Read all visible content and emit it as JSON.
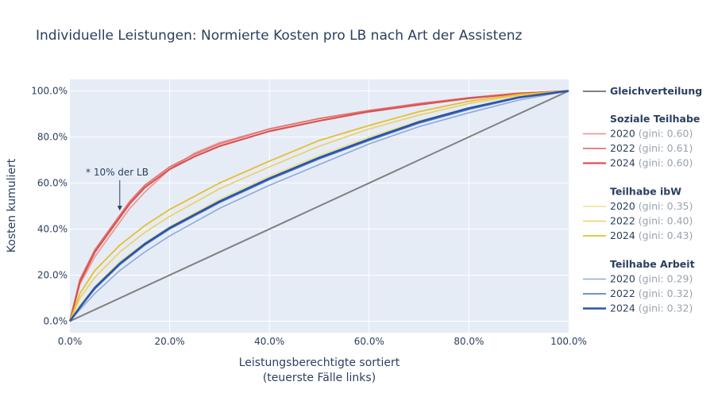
{
  "chart_data": {
    "type": "line",
    "title": "Individuelle Leistungen: Normierte Kosten pro LB nach Art der Assistenz",
    "xlabel": "Leistungsberechtigte sortiert",
    "xlabel_sub": "(teuerste Fälle links)",
    "ylabel": "Kosten kumuliert",
    "xlim": [
      0,
      1
    ],
    "ylim": [
      -0.05,
      1.05
    ],
    "x_ticks": [
      0,
      0.2,
      0.4,
      0.6,
      0.8,
      1.0
    ],
    "x_tick_labels": [
      "0.0%",
      "20.0%",
      "40.0%",
      "60.0%",
      "80.0%",
      "100.0%"
    ],
    "y_ticks": [
      0,
      0.2,
      0.4,
      0.6,
      0.8,
      1.0
    ],
    "y_tick_labels": [
      "0.0%",
      "20.0%",
      "40.0%",
      "60.0%",
      "80.0%",
      "100.0%"
    ],
    "grid": true,
    "legend_position": "right",
    "annotation": {
      "text": "* 10% der LB",
      "x": 0.1,
      "y": 0.48
    },
    "reference": {
      "name": "Gleichverteilung",
      "color": "#808080",
      "x": [
        0,
        1
      ],
      "y": [
        0,
        1
      ]
    },
    "groups": [
      {
        "name": "Soziale Teilhabe",
        "series": [
          {
            "name": "2020",
            "gini_label": "(gini: 0.60)",
            "color": "#ee9a9a",
            "width": 1.8,
            "x": [
              0,
              0.02,
              0.05,
              0.08,
              0.1,
              0.12,
              0.15,
              0.2,
              0.25,
              0.3,
              0.4,
              0.5,
              0.6,
              0.7,
              0.8,
              0.9,
              1.0
            ],
            "y": [
              0,
              0.16,
              0.28,
              0.37,
              0.43,
              0.49,
              0.56,
              0.66,
              0.73,
              0.775,
              0.835,
              0.88,
              0.915,
              0.945,
              0.97,
              0.99,
              1.0
            ]
          },
          {
            "name": "2022",
            "gini_label": "(gini: 0.61)",
            "color": "#e57373",
            "width": 1.8,
            "x": [
              0,
              0.02,
              0.05,
              0.08,
              0.1,
              0.12,
              0.15,
              0.2,
              0.25,
              0.3,
              0.4,
              0.5,
              0.6,
              0.7,
              0.8,
              0.9,
              1.0
            ],
            "y": [
              0,
              0.18,
              0.31,
              0.4,
              0.46,
              0.52,
              0.59,
              0.67,
              0.725,
              0.77,
              0.835,
              0.88,
              0.915,
              0.945,
              0.97,
              0.99,
              1.0
            ]
          },
          {
            "name": "2024",
            "gini_label": "(gini: 0.60)",
            "color": "#d9534f",
            "width": 2.2,
            "x": [
              0,
              0.02,
              0.05,
              0.08,
              0.1,
              0.12,
              0.15,
              0.2,
              0.25,
              0.3,
              0.4,
              0.5,
              0.6,
              0.7,
              0.8,
              0.9,
              1.0
            ],
            "y": [
              0,
              0.17,
              0.3,
              0.39,
              0.45,
              0.51,
              0.58,
              0.66,
              0.715,
              0.76,
              0.825,
              0.87,
              0.91,
              0.94,
              0.968,
              0.988,
              1.0
            ]
          }
        ]
      },
      {
        "name": "Teilhabe ibW",
        "series": [
          {
            "name": "2020",
            "gini_label": "(gini: 0.35)",
            "color": "#efe08e",
            "width": 1.6,
            "x": [
              0,
              0.02,
              0.05,
              0.1,
              0.15,
              0.2,
              0.3,
              0.4,
              0.5,
              0.6,
              0.7,
              0.8,
              0.9,
              1.0
            ],
            "y": [
              0,
              0.07,
              0.15,
              0.26,
              0.34,
              0.41,
              0.53,
              0.63,
              0.72,
              0.8,
              0.87,
              0.925,
              0.97,
              1.0
            ]
          },
          {
            "name": "2022",
            "gini_label": "(gini: 0.40)",
            "color": "#ecd062",
            "width": 1.6,
            "x": [
              0,
              0.02,
              0.05,
              0.1,
              0.15,
              0.2,
              0.3,
              0.4,
              0.5,
              0.6,
              0.7,
              0.8,
              0.9,
              1.0
            ],
            "y": [
              0,
              0.1,
              0.19,
              0.3,
              0.385,
              0.455,
              0.575,
              0.67,
              0.76,
              0.835,
              0.895,
              0.945,
              0.98,
              1.0
            ]
          },
          {
            "name": "2024",
            "gini_label": "(gini: 0.43)",
            "color": "#e6be2e",
            "width": 1.8,
            "x": [
              0,
              0.02,
              0.05,
              0.1,
              0.15,
              0.2,
              0.3,
              0.4,
              0.5,
              0.6,
              0.7,
              0.8,
              0.9,
              1.0
            ],
            "y": [
              0,
              0.12,
              0.22,
              0.33,
              0.415,
              0.485,
              0.6,
              0.695,
              0.785,
              0.85,
              0.91,
              0.955,
              0.985,
              1.0
            ]
          }
        ]
      },
      {
        "name": "Teilhabe Arbeit",
        "series": [
          {
            "name": "2020",
            "gini_label": "(gini: 0.29)",
            "color": "#8fa9dc",
            "width": 1.6,
            "x": [
              0,
              0.02,
              0.05,
              0.1,
              0.15,
              0.2,
              0.3,
              0.4,
              0.5,
              0.6,
              0.7,
              0.8,
              0.9,
              1.0
            ],
            "y": [
              0,
              0.05,
              0.12,
              0.22,
              0.3,
              0.37,
              0.49,
              0.59,
              0.68,
              0.77,
              0.845,
              0.905,
              0.96,
              1.0
            ]
          },
          {
            "name": "2022",
            "gini_label": "(gini: 0.32)",
            "color": "#5b82cf",
            "width": 1.8,
            "x": [
              0,
              0.02,
              0.05,
              0.1,
              0.15,
              0.2,
              0.3,
              0.4,
              0.5,
              0.6,
              0.7,
              0.8,
              0.9,
              1.0
            ],
            "y": [
              0,
              0.06,
              0.14,
              0.245,
              0.33,
              0.4,
              0.515,
              0.615,
              0.705,
              0.785,
              0.86,
              0.92,
              0.97,
              1.0
            ]
          },
          {
            "name": "2024",
            "gini_label": "(gini: 0.32)",
            "color": "#2a55a8",
            "width": 2.6,
            "x": [
              0,
              0.02,
              0.05,
              0.1,
              0.15,
              0.2,
              0.3,
              0.4,
              0.5,
              0.6,
              0.7,
              0.8,
              0.9,
              1.0
            ],
            "y": [
              0,
              0.06,
              0.145,
              0.25,
              0.335,
              0.405,
              0.52,
              0.62,
              0.71,
              0.79,
              0.865,
              0.925,
              0.972,
              1.0
            ]
          }
        ]
      }
    ]
  }
}
